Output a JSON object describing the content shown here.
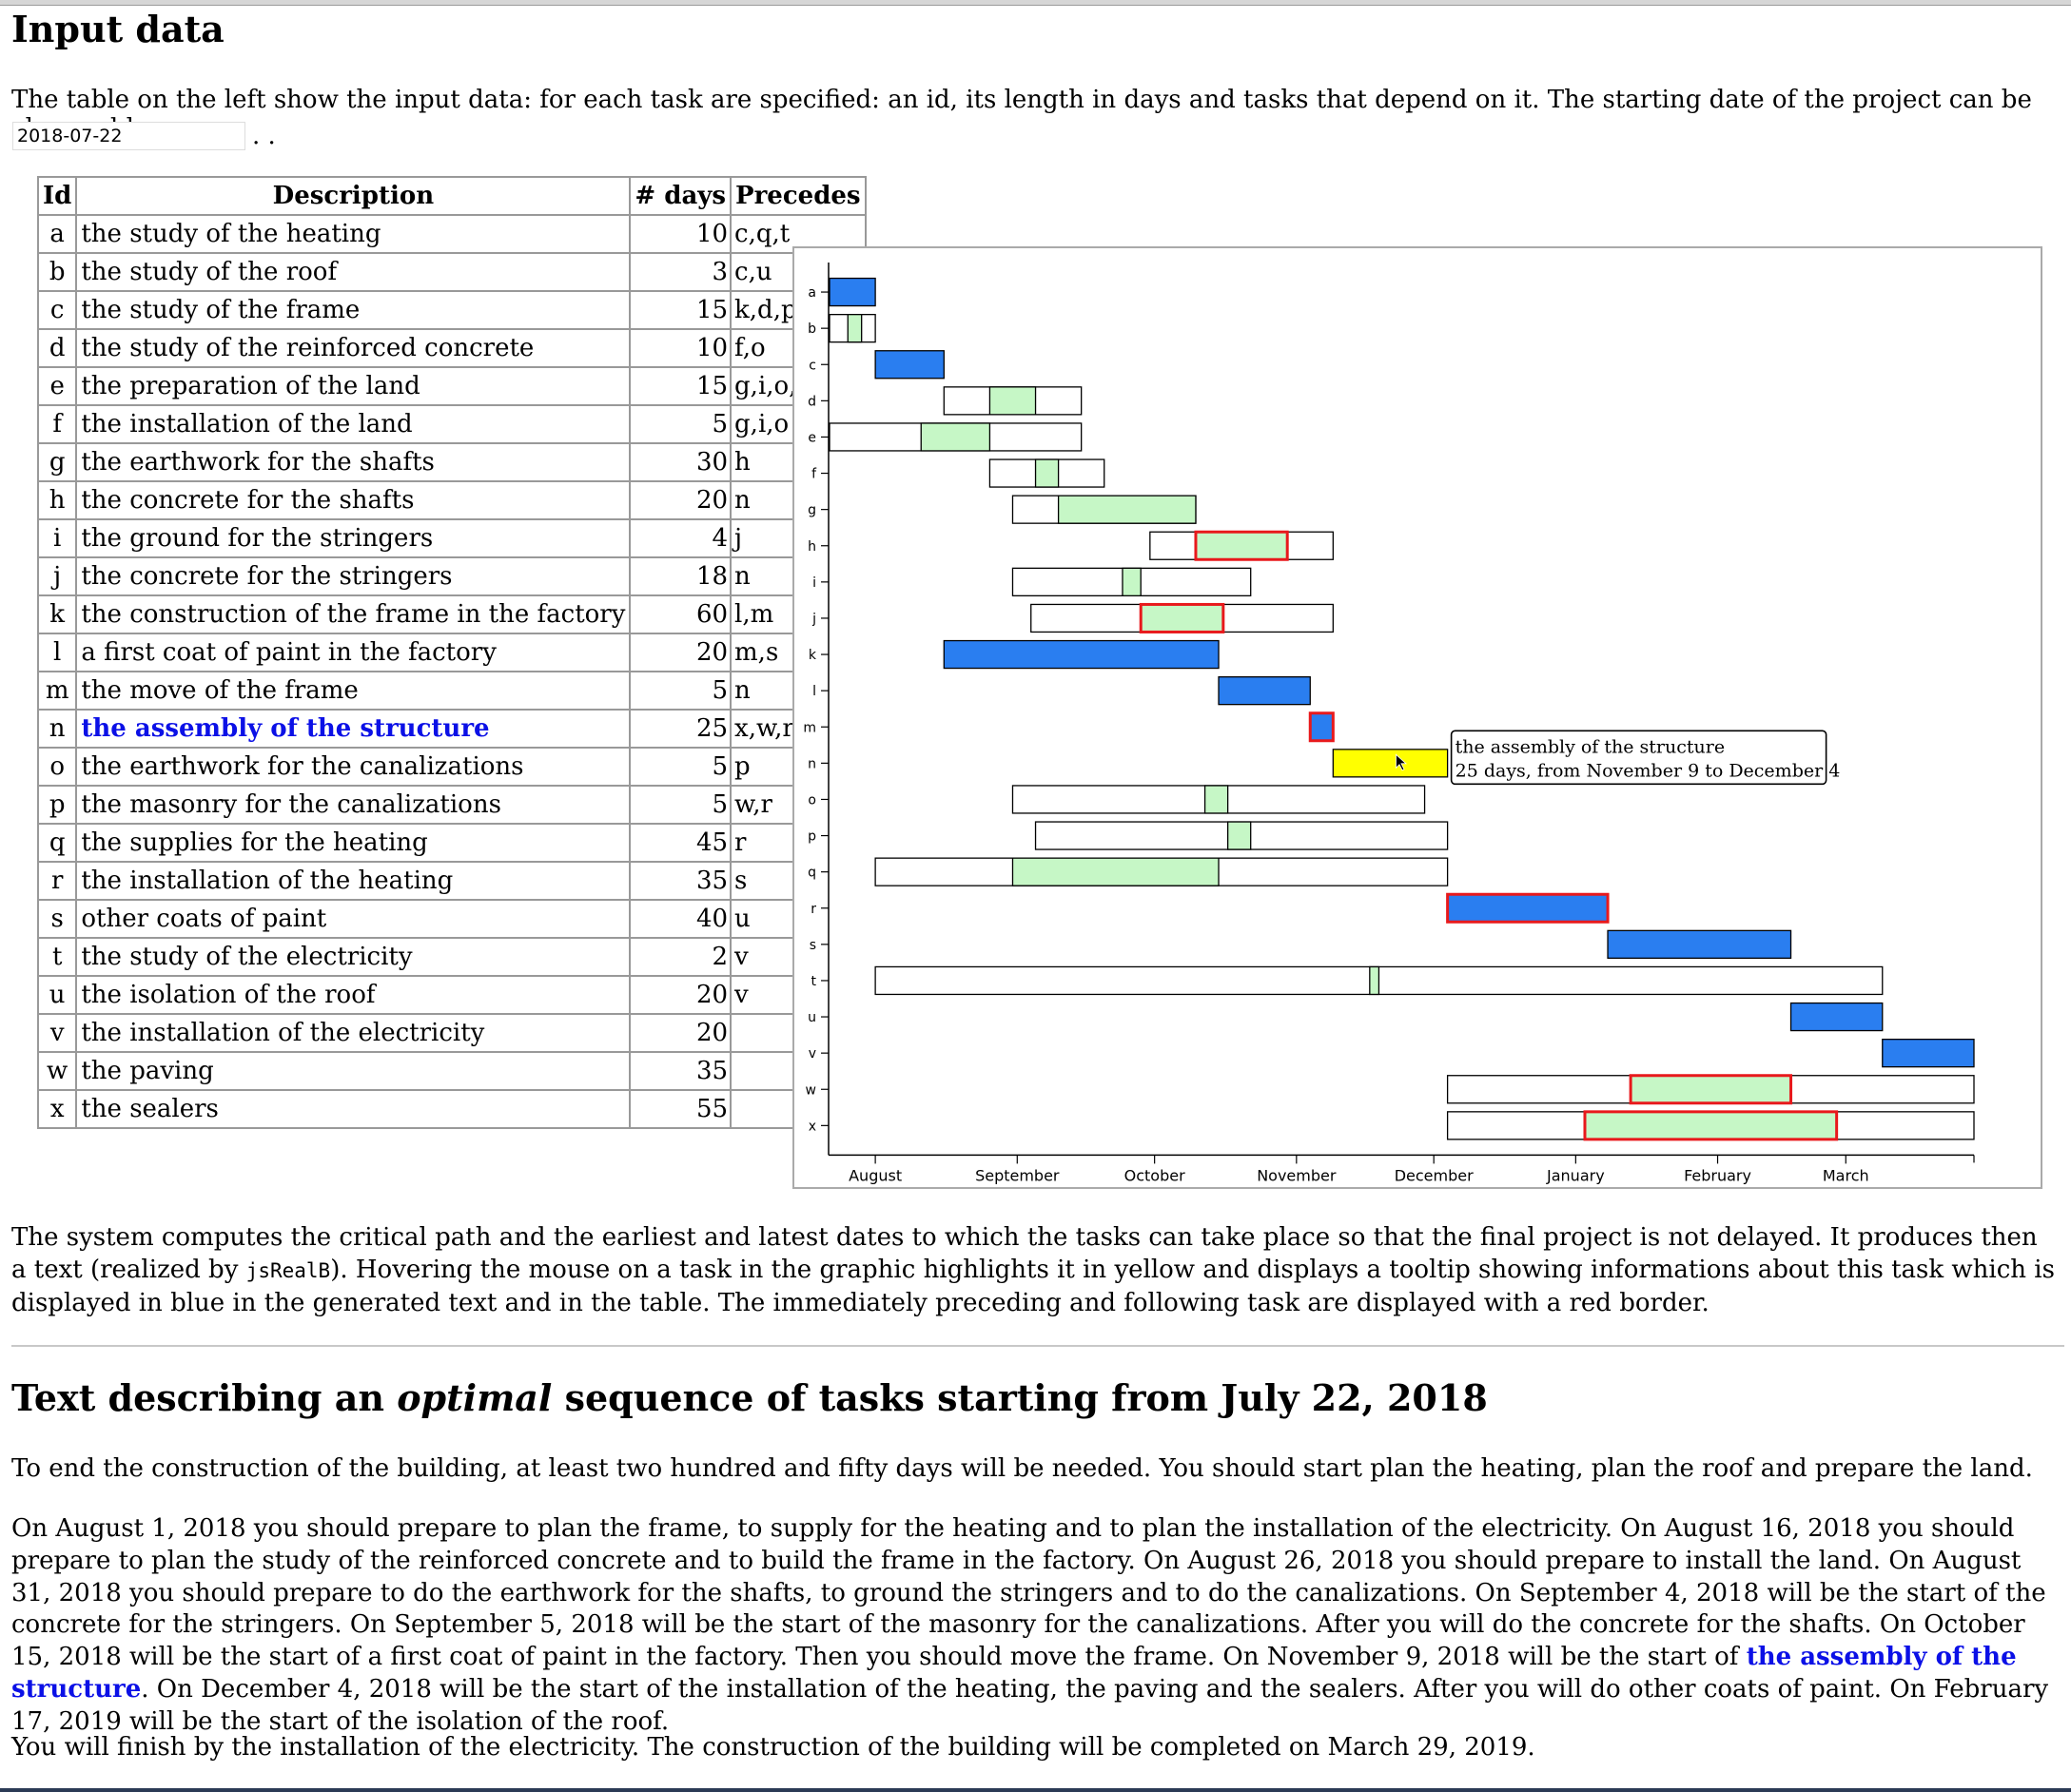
{
  "input_section": {
    "heading": "Input data",
    "intro": "The table on the left show the input data: for each task are specified: an id, its length in days and tasks that depend on it. The starting date of the project can be changed here:",
    "start_date": "2018-07-22",
    "after_input": ". ."
  },
  "table": {
    "headers": [
      "Id",
      "Description",
      "# days",
      "Precedes"
    ],
    "rows": [
      {
        "id": "a",
        "desc": "the study of the heating",
        "days": "10",
        "precedes": "c,q,t"
      },
      {
        "id": "b",
        "desc": "the study of the roof",
        "days": "3",
        "precedes": "c,u"
      },
      {
        "id": "c",
        "desc": "the study of the frame",
        "days": "15",
        "precedes": "k,d,p"
      },
      {
        "id": "d",
        "desc": "the study of the reinforced concrete",
        "days": "10",
        "precedes": "f,o"
      },
      {
        "id": "e",
        "desc": "the preparation of the land",
        "days": "15",
        "precedes": "g,i,o,f"
      },
      {
        "id": "f",
        "desc": "the installation of the land",
        "days": "5",
        "precedes": "g,i,o"
      },
      {
        "id": "g",
        "desc": "the earthwork for the shafts",
        "days": "30",
        "precedes": "h"
      },
      {
        "id": "h",
        "desc": "the concrete for the shafts",
        "days": "20",
        "precedes": "n"
      },
      {
        "id": "i",
        "desc": "the ground for the stringers",
        "days": "4",
        "precedes": "j"
      },
      {
        "id": "j",
        "desc": "the concrete for the stringers",
        "days": "18",
        "precedes": "n"
      },
      {
        "id": "k",
        "desc": "the construction of the frame in the factory",
        "days": "60",
        "precedes": "l,m"
      },
      {
        "id": "l",
        "desc": "a first coat of paint in the factory",
        "days": "20",
        "precedes": "m,s"
      },
      {
        "id": "m",
        "desc": "the move of the frame",
        "days": "5",
        "precedes": "n"
      },
      {
        "id": "n",
        "desc": "the assembly of the structure",
        "days": "25",
        "precedes": "x,w,r"
      },
      {
        "id": "o",
        "desc": "the earthwork for the canalizations",
        "days": "5",
        "precedes": "p"
      },
      {
        "id": "p",
        "desc": "the masonry for the canalizations",
        "days": "5",
        "precedes": "w,r"
      },
      {
        "id": "q",
        "desc": "the supplies for the heating",
        "days": "45",
        "precedes": "r"
      },
      {
        "id": "r",
        "desc": "the installation of the heating",
        "days": "35",
        "precedes": "s"
      },
      {
        "id": "s",
        "desc": "other coats of paint",
        "days": "40",
        "precedes": "u"
      },
      {
        "id": "t",
        "desc": "the study of the electricity",
        "days": "2",
        "precedes": "v"
      },
      {
        "id": "u",
        "desc": "the isolation of the roof",
        "days": "20",
        "precedes": "v"
      },
      {
        "id": "v",
        "desc": "the installation of the electricity",
        "days": "20",
        "precedes": ""
      },
      {
        "id": "w",
        "desc": "the paving",
        "days": "35",
        "precedes": ""
      },
      {
        "id": "x",
        "desc": "the sealers",
        "days": "55",
        "precedes": ""
      }
    ]
  },
  "highlighted_task": "n",
  "colors": {
    "critical": "#2a7ef0",
    "slack_task": "#c6f7c6",
    "hover": "#ffff00",
    "neighbor_border": "#e8191c",
    "emphasis_text": "#0b10e6"
  },
  "chart_data": {
    "type": "gantt",
    "project_start": "2018-07-22",
    "x_tick_labels": [
      "August",
      "September",
      "October",
      "November",
      "December",
      "January",
      "February",
      "March"
    ],
    "x_ticks": [
      "2018-08-01",
      "2018-09-01",
      "2018-10-01",
      "2018-11-01",
      "2018-12-01",
      "2019-01-01",
      "2019-02-01",
      "2019-03-01"
    ],
    "xlim": [
      "2018-07-22",
      "2019-03-29"
    ],
    "tasks": [
      {
        "id": "a",
        "critical": true,
        "start": "2018-07-22",
        "end": "2018-08-01"
      },
      {
        "id": "b",
        "critical": false,
        "window_start": "2018-07-22",
        "window_end": "2018-08-01",
        "start": "2018-07-26",
        "end": "2018-07-29"
      },
      {
        "id": "c",
        "critical": true,
        "start": "2018-08-01",
        "end": "2018-08-16"
      },
      {
        "id": "d",
        "critical": false,
        "window_start": "2018-08-16",
        "window_end": "2018-09-15",
        "start": "2018-08-26",
        "end": "2018-09-05"
      },
      {
        "id": "e",
        "critical": false,
        "window_start": "2018-07-22",
        "window_end": "2018-09-15",
        "start": "2018-08-11",
        "end": "2018-08-26"
      },
      {
        "id": "f",
        "critical": false,
        "window_start": "2018-08-26",
        "window_end": "2018-09-20",
        "start": "2018-09-05",
        "end": "2018-09-10"
      },
      {
        "id": "g",
        "critical": false,
        "window_start": "2018-08-31",
        "window_end": "2018-10-10",
        "start": "2018-09-10",
        "end": "2018-10-10"
      },
      {
        "id": "h",
        "critical": false,
        "neighbor": true,
        "window_start": "2018-09-30",
        "window_end": "2018-11-09",
        "start": "2018-10-10",
        "end": "2018-10-30"
      },
      {
        "id": "i",
        "critical": false,
        "window_start": "2018-08-31",
        "window_end": "2018-10-22",
        "start": "2018-09-24",
        "end": "2018-09-28"
      },
      {
        "id": "j",
        "critical": false,
        "neighbor": true,
        "window_start": "2018-09-04",
        "window_end": "2018-11-09",
        "start": "2018-09-28",
        "end": "2018-10-16"
      },
      {
        "id": "k",
        "critical": true,
        "start": "2018-08-16",
        "end": "2018-10-15"
      },
      {
        "id": "l",
        "critical": true,
        "start": "2018-10-15",
        "end": "2018-11-04"
      },
      {
        "id": "m",
        "critical": true,
        "neighbor": true,
        "start": "2018-11-04",
        "end": "2018-11-09"
      },
      {
        "id": "n",
        "critical": true,
        "hovered": true,
        "start": "2018-11-09",
        "end": "2018-12-04"
      },
      {
        "id": "o",
        "critical": false,
        "window_start": "2018-08-31",
        "window_end": "2018-11-29",
        "start": "2018-10-12",
        "end": "2018-10-17"
      },
      {
        "id": "p",
        "critical": false,
        "window_start": "2018-09-05",
        "window_end": "2018-12-04",
        "start": "2018-10-17",
        "end": "2018-10-22"
      },
      {
        "id": "q",
        "critical": false,
        "window_start": "2018-08-01",
        "window_end": "2018-12-04",
        "start": "2018-08-31",
        "end": "2018-10-15"
      },
      {
        "id": "r",
        "critical": true,
        "neighbor": true,
        "start": "2018-12-04",
        "end": "2019-01-08"
      },
      {
        "id": "s",
        "critical": true,
        "start": "2019-01-08",
        "end": "2019-02-17"
      },
      {
        "id": "t",
        "critical": false,
        "window_start": "2018-08-01",
        "window_end": "2019-03-09",
        "start": "2018-11-17",
        "end": "2018-11-19"
      },
      {
        "id": "u",
        "critical": true,
        "start": "2019-02-17",
        "end": "2019-03-09"
      },
      {
        "id": "v",
        "critical": true,
        "start": "2019-03-09",
        "end": "2019-03-29"
      },
      {
        "id": "w",
        "critical": false,
        "neighbor": true,
        "window_start": "2018-12-04",
        "window_end": "2019-03-29",
        "start": "2019-01-13",
        "end": "2019-02-17"
      },
      {
        "id": "x",
        "critical": false,
        "neighbor": true,
        "window_start": "2018-12-04",
        "window_end": "2019-03-29",
        "start": "2019-01-03",
        "end": "2019-02-27"
      }
    ],
    "tooltip": {
      "line1": "the assembly of the structure",
      "line2": "25 days, from November 9 to December 4"
    }
  },
  "system_paragraph": {
    "part1": "The system computes the critical path and the earliest and latest dates to which the tasks can take place so that the final project is not delayed. It produces then a text (realized by ",
    "code": "jsRealB",
    "part2": "). Hovering the mouse on a task in the graphic highlights it in yellow and displays a tooltip showing informations about this task which is displayed in blue in the generated text and in the table. The immediately preceding and following task are displayed with a red border."
  },
  "text_section": {
    "heading_pre": "Text describing an ",
    "heading_em": "optimal",
    "heading_post": " sequence of tasks starting from July 22, 2018",
    "p1": "To end the construction of the building, at least two hundred and fifty days will be needed. You should start plan the heating, plan the roof and prepare the land.",
    "p2_a": "On August 1, 2018 you should prepare to plan the frame, to supply for the heating and to plan the installation of the electricity. On August 16, 2018 you should prepare to plan the study of the reinforced concrete and to build the frame in the factory. On August 26, 2018 you should prepare to install the land. On August 31, 2018 you should prepare to do the earthwork for the shafts, to ground the stringers and to do the canalizations. On September 4, 2018 will be the start of the concrete for the stringers. On September 5, 2018 will be the start of the masonry for the canalizations. After you will do the concrete for the shafts. On October 15, 2018 will be the start of a first coat of paint in the factory. Then you should move the frame. On November 9, 2018 will be the start of ",
    "p2_highlight": "the assembly of the structure",
    "p2_b": ". On December 4, 2018 will be the start of the installation of the heating, the paving and the sealers. After you will do other coats of paint. On February 17, 2019 will be the start of the isolation of the roof.",
    "p3": "You will finish by the installation of the electricity. The construction of the building will be completed on March 29, 2019."
  }
}
